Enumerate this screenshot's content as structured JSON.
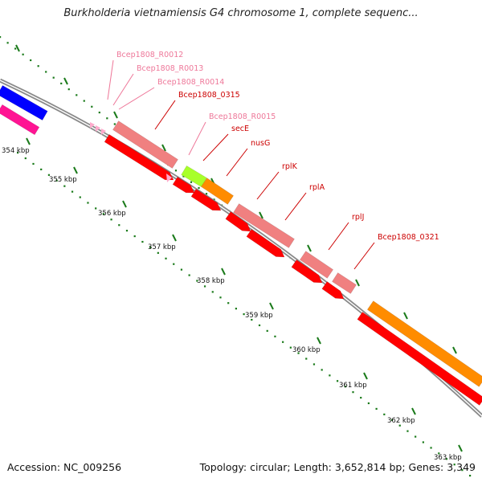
{
  "title": "Burkholderia vietnamiensis G4 chromosome 1, complete sequenc...",
  "accession": "Accession: NC_009256",
  "summary": "Topology: circular; Length: 3,652,814 bp; Genes: 3,349",
  "colors": {
    "backbone": "#8a8a8a",
    "tick_major": "#1a7a1a",
    "tick_minor": "#1a7a1a",
    "gene_red": "#ff0000",
    "gene_pink": "#f08080",
    "gene_orange": "#ff8c00",
    "gene_green": "#a8ff2a",
    "gene_blue": "#0000ff",
    "gene_magenta": "#ff1493",
    "label_dark": "#cc0000",
    "label_light": "#ee7799"
  },
  "ruler": [
    {
      "label": "354 kbp"
    },
    {
      "label": "355 kbp"
    },
    {
      "label": "356 kbp"
    },
    {
      "label": "357 kbp"
    },
    {
      "label": "358 kbp"
    },
    {
      "label": "359 kbp"
    },
    {
      "label": "360 kbp"
    },
    {
      "label": "361 kbp"
    },
    {
      "label": "362 kbp"
    },
    {
      "label": "363 kbp"
    }
  ],
  "gene_labels": [
    {
      "name": "Bcep1808_R0012",
      "tone": "light"
    },
    {
      "name": "Bcep1808_R0013",
      "tone": "light"
    },
    {
      "name": "Bcep1808_R0014",
      "tone": "light"
    },
    {
      "name": "Bcep1808_0315",
      "tone": "dark"
    },
    {
      "name": "Bcep1808_R0015",
      "tone": "light"
    },
    {
      "name": "secE",
      "tone": "dark"
    },
    {
      "name": "nusG",
      "tone": "dark"
    },
    {
      "name": "rplK",
      "tone": "dark"
    },
    {
      "name": "rplA",
      "tone": "dark"
    },
    {
      "name": "rplJ",
      "tone": "dark"
    },
    {
      "name": "Bcep1808_0321",
      "tone": "dark"
    }
  ]
}
